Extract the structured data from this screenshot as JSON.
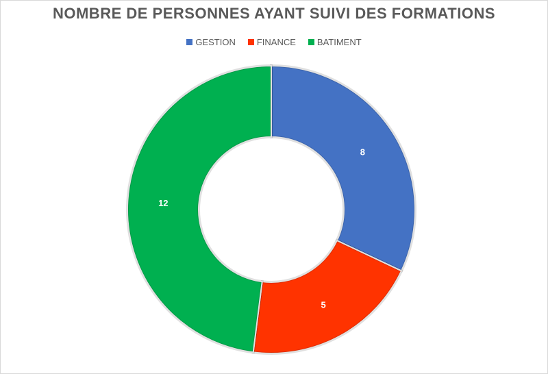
{
  "chart_data": {
    "type": "pie",
    "title": "NOMBRE DE PERSONNES AYANT SUIVI DES FORMATIONS",
    "categories": [
      "GESTION",
      "FINANCE",
      "BATIMENT"
    ],
    "values": [
      8,
      5,
      12
    ],
    "data_labels": [
      "8",
      "5",
      "12"
    ],
    "colors": [
      "#4472C4",
      "#FF3300",
      "#00B050"
    ],
    "donut": true,
    "legend_position": "top"
  }
}
